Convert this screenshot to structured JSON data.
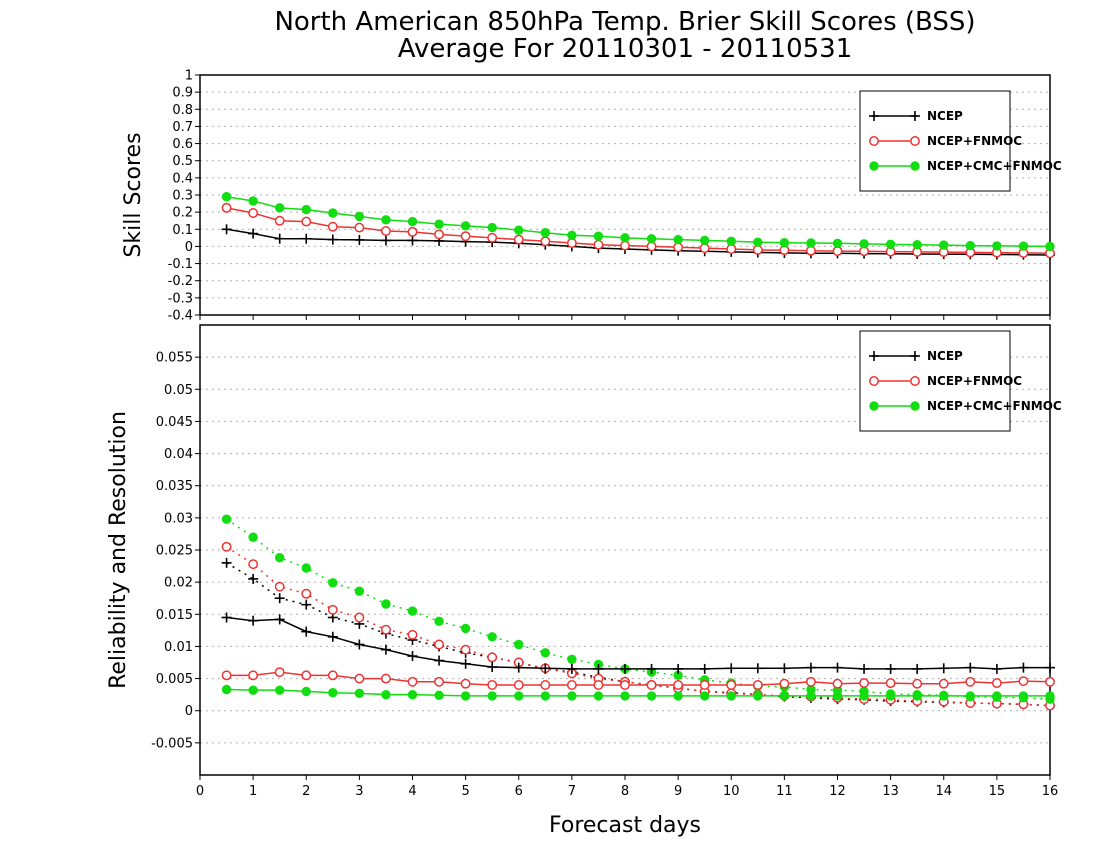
{
  "title_line1": "North American 850hPa Temp. Brier Skill Scores (BSS)",
  "title_line2": "Average For 20110301 - 20110531",
  "colors": {
    "ncep": "#000000",
    "ncep_fnmoc": "#ee3333",
    "ncep_cmc_fnmoc": "#11dd11"
  },
  "chart_data": [
    {
      "type": "line",
      "ylabel": "Skill Scores",
      "xlabel": "",
      "xlim": [
        0,
        16
      ],
      "ylim": [
        -0.4,
        1
      ],
      "x_ticks": [
        "0",
        "1",
        "2",
        "3",
        "4",
        "5",
        "6",
        "7",
        "8",
        "9",
        "10",
        "11",
        "12",
        "13",
        "14",
        "15",
        "16"
      ],
      "y_ticks": [
        "-0.4",
        "-0.3",
        "-0.2",
        "-0.1",
        "0",
        "0.1",
        "0.2",
        "0.3",
        "0.4",
        "0.5",
        "0.6",
        "0.7",
        "0.8",
        "0.9",
        "1"
      ],
      "grid": true,
      "legend_position": "top-right",
      "x": [
        0.5,
        1,
        1.5,
        2,
        2.5,
        3,
        3.5,
        4,
        4.5,
        5,
        5.5,
        6,
        6.5,
        7,
        7.5,
        8,
        8.5,
        9,
        9.5,
        10,
        10.5,
        11,
        11.5,
        12,
        12.5,
        13,
        13.5,
        14,
        14.5,
        15,
        15.5,
        16
      ],
      "series": [
        {
          "name": "NCEP",
          "style": "solid",
          "marker": "plus",
          "color_key": "ncep",
          "values": [
            0.1,
            0.075,
            0.045,
            0.045,
            0.04,
            0.038,
            0.035,
            0.035,
            0.032,
            0.028,
            0.025,
            0.018,
            0.01,
            0.0,
            -0.01,
            -0.015,
            -0.02,
            -0.025,
            -0.028,
            -0.032,
            -0.035,
            -0.038,
            -0.04,
            -0.04,
            -0.042,
            -0.043,
            -0.044,
            -0.045,
            -0.046,
            -0.047,
            -0.048,
            -0.05
          ]
        },
        {
          "name": "NCEP+FNMOC",
          "style": "solid",
          "marker": "open-circle",
          "color_key": "ncep_fnmoc",
          "values": [
            0.225,
            0.195,
            0.15,
            0.145,
            0.115,
            0.11,
            0.09,
            0.085,
            0.07,
            0.06,
            0.05,
            0.04,
            0.03,
            0.02,
            0.01,
            0.005,
            0.0,
            -0.005,
            -0.01,
            -0.015,
            -0.02,
            -0.022,
            -0.025,
            -0.027,
            -0.028,
            -0.03,
            -0.032,
            -0.033,
            -0.035,
            -0.036,
            -0.038,
            -0.04
          ]
        },
        {
          "name": "NCEP+CMC+FNMOC",
          "style": "solid",
          "marker": "filled-circle",
          "color_key": "ncep_cmc_fnmoc",
          "values": [
            0.29,
            0.265,
            0.225,
            0.215,
            0.195,
            0.175,
            0.155,
            0.145,
            0.13,
            0.12,
            0.11,
            0.095,
            0.08,
            0.065,
            0.06,
            0.05,
            0.045,
            0.04,
            0.035,
            0.03,
            0.025,
            0.022,
            0.02,
            0.018,
            0.015,
            0.012,
            0.01,
            0.008,
            0.005,
            0.003,
            0.002,
            0.0
          ]
        }
      ]
    },
    {
      "type": "line",
      "ylabel": "Reliability and Resolution",
      "xlabel": "Forecast days",
      "xlim": [
        0,
        16
      ],
      "ylim": [
        -0.01,
        0.06
      ],
      "x_ticks": [
        "0",
        "1",
        "2",
        "3",
        "4",
        "5",
        "6",
        "7",
        "8",
        "9",
        "10",
        "11",
        "12",
        "13",
        "14",
        "15",
        "16"
      ],
      "y_ticks": [
        "-0.005",
        "0",
        "0.005",
        "0.01",
        "0.015",
        "0.02",
        "0.025",
        "0.03",
        "0.035",
        "0.04",
        "0.045",
        "0.05",
        "0.055"
      ],
      "grid": true,
      "legend_position": "top-right",
      "x": [
        0.5,
        1,
        1.5,
        2,
        2.5,
        3,
        3.5,
        4,
        4.5,
        5,
        5.5,
        6,
        6.5,
        7,
        7.5,
        8,
        8.5,
        9,
        9.5,
        10,
        10.5,
        11,
        11.5,
        12,
        12.5,
        13,
        13.5,
        14,
        14.5,
        15,
        15.5,
        16
      ],
      "series": [
        {
          "name": "NCEP",
          "style": "dotted",
          "marker": "plus",
          "color_key": "ncep",
          "values": [
            0.023,
            0.0205,
            0.0175,
            0.0165,
            0.0145,
            0.0135,
            0.012,
            0.011,
            0.01,
            0.009,
            0.0083,
            0.0075,
            0.0065,
            0.006,
            0.0052,
            0.0045,
            0.004,
            0.0035,
            0.003,
            0.0028,
            0.0025,
            0.0022,
            0.002,
            0.0018,
            0.0017,
            0.0015,
            0.0014,
            0.0013,
            0.0012,
            0.0011,
            0.001,
            0.0008
          ]
        },
        {
          "name": "NCEP+FNMOC",
          "style": "dotted",
          "marker": "open-circle",
          "color_key": "ncep_fnmoc",
          "values": [
            0.0255,
            0.0228,
            0.0193,
            0.0182,
            0.0157,
            0.0145,
            0.0126,
            0.0118,
            0.0103,
            0.0095,
            0.0083,
            0.0075,
            0.0066,
            0.0058,
            0.005,
            0.0045,
            0.004,
            0.0035,
            0.003,
            0.0027,
            0.0025,
            0.0023,
            0.0022,
            0.002,
            0.0018,
            0.0017,
            0.0015,
            0.0014,
            0.0012,
            0.0011,
            0.001,
            0.0008
          ]
        },
        {
          "name": "NCEP+CMC+FNMOC",
          "style": "dotted",
          "marker": "filled-circle",
          "color_key": "ncep_cmc_fnmoc",
          "values": [
            0.0298,
            0.027,
            0.0238,
            0.0222,
            0.0199,
            0.0186,
            0.0166,
            0.0155,
            0.0139,
            0.0128,
            0.0115,
            0.0103,
            0.009,
            0.008,
            0.0072,
            0.0065,
            0.006,
            0.0055,
            0.0048,
            0.0043,
            0.0038,
            0.0037,
            0.0033,
            0.0032,
            0.003,
            0.0026,
            0.0025,
            0.0024,
            0.0022,
            0.0021,
            0.002,
            0.0018
          ]
        },
        {
          "name": "NCEP",
          "style": "solid",
          "marker": "plus",
          "color_key": "ncep",
          "values": [
            0.0145,
            0.014,
            0.0142,
            0.0123,
            0.0115,
            0.0103,
            0.0095,
            0.0085,
            0.0078,
            0.0073,
            0.0068,
            0.0067,
            0.0066,
            0.0065,
            0.0065,
            0.0065,
            0.0065,
            0.0065,
            0.0065,
            0.0066,
            0.0066,
            0.0066,
            0.0067,
            0.0067,
            0.0065,
            0.0065,
            0.0065,
            0.0066,
            0.0067,
            0.0065,
            0.0067,
            0.0067
          ]
        },
        {
          "name": "NCEP+FNMOC",
          "style": "solid",
          "marker": "open-circle",
          "color_key": "ncep_fnmoc",
          "values": [
            0.0055,
            0.0055,
            0.006,
            0.0055,
            0.0055,
            0.005,
            0.005,
            0.0045,
            0.0045,
            0.0042,
            0.004,
            0.004,
            0.004,
            0.004,
            0.004,
            0.004,
            0.004,
            0.004,
            0.004,
            0.004,
            0.004,
            0.0042,
            0.0045,
            0.0042,
            0.0043,
            0.0043,
            0.0042,
            0.0042,
            0.0045,
            0.0043,
            0.0046,
            0.0045
          ]
        },
        {
          "name": "NCEP+CMC+FNMOC",
          "style": "solid",
          "marker": "filled-circle",
          "color_key": "ncep_cmc_fnmoc",
          "values": [
            0.0033,
            0.0032,
            0.0032,
            0.003,
            0.0028,
            0.0027,
            0.0025,
            0.0025,
            0.0024,
            0.0023,
            0.0023,
            0.0023,
            0.0023,
            0.0023,
            0.0023,
            0.0023,
            0.0023,
            0.0023,
            0.0023,
            0.0023,
            0.0023,
            0.0023,
            0.0023,
            0.0023,
            0.0023,
            0.0023,
            0.0023,
            0.0023,
            0.0023,
            0.0023,
            0.0023,
            0.0023
          ]
        }
      ]
    }
  ]
}
